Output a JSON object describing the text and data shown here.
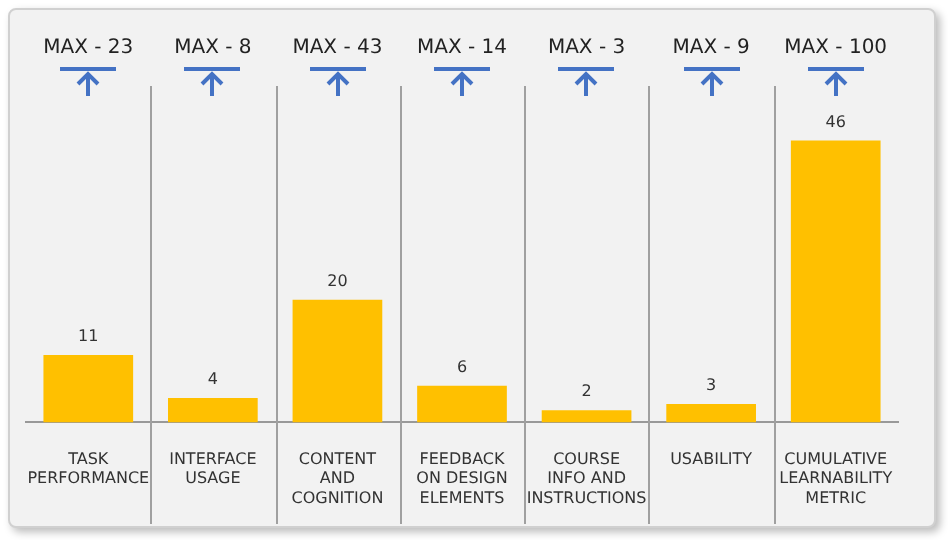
{
  "chart_data": {
    "type": "bar",
    "categories": [
      "TASK PERFORMANCE",
      "INTERFACE USAGE",
      "CONTENT AND COGNITION",
      "FEEDBACK ON DESIGN ELEMENTS",
      "COURSE INFO AND INSTRUCTIONS",
      "USABILITY",
      "CUMULATIVE LEARNABILITY METRIC"
    ],
    "values": [
      11,
      4,
      20,
      6,
      2,
      3,
      46
    ],
    "color": "#ffc000",
    "data_labels": true,
    "grid": "x",
    "annotations": [
      {
        "text": "MAX - 23",
        "x": "TASK PERFORMANCE"
      },
      {
        "text": "MAX - 8",
        "x": "INTERFACE USAGE"
      },
      {
        "text": "MAX - 43",
        "x": "CONTENT AND COGNITION"
      },
      {
        "text": "MAX - 14",
        "x": "FEEDBACK ON DESIGN ELEMENTS"
      },
      {
        "text": "MAX - 3",
        "x": "COURSE INFO AND INSTRUCTIONS"
      },
      {
        "text": "MAX - 9",
        "x": "USABILITY"
      },
      {
        "text": "MAX - 100",
        "x": "CUMULATIVE LEARNABILITY METRIC"
      }
    ]
  }
}
